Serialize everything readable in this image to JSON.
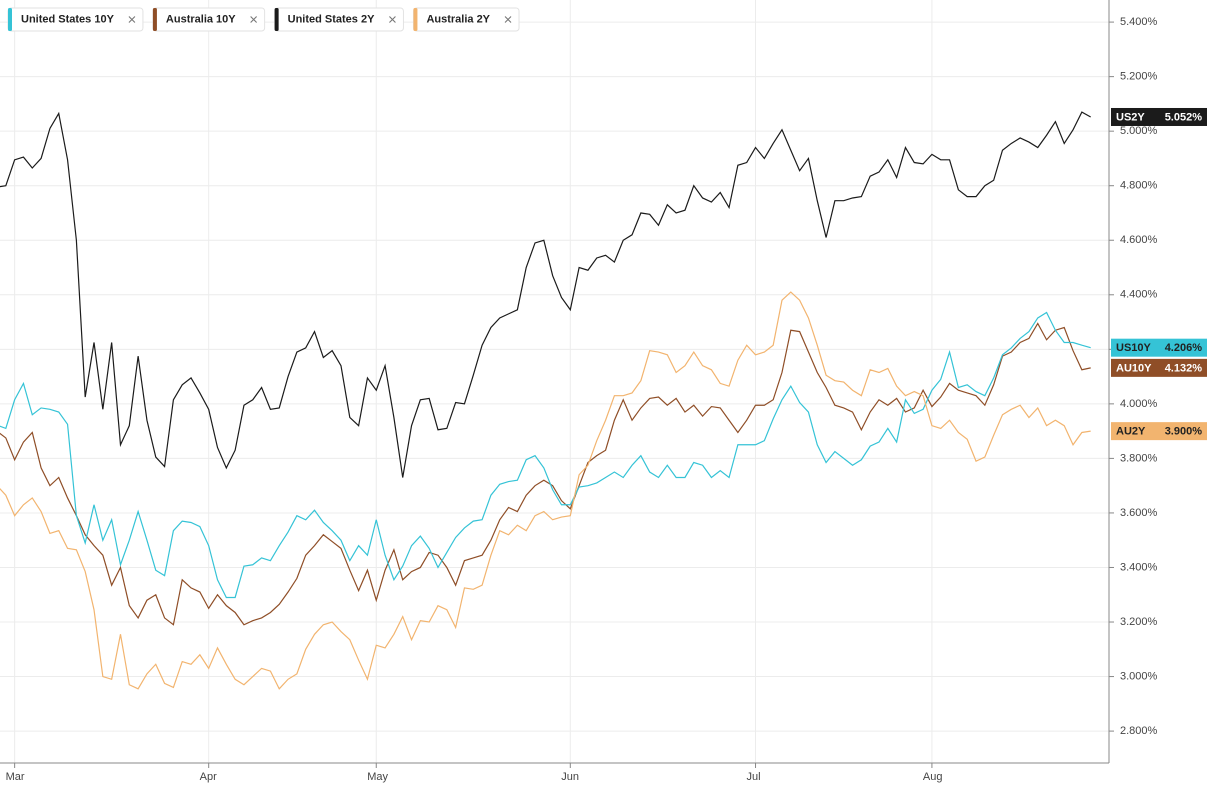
{
  "chart_data": {
    "type": "line",
    "categories": [
      null,
      null,
      "Mar",
      null,
      null,
      null,
      null,
      null,
      null,
      null,
      null,
      null,
      null,
      null,
      null,
      null,
      null,
      null,
      null,
      null,
      null,
      null,
      null,
      null,
      "Apr",
      null,
      null,
      null,
      null,
      null,
      null,
      null,
      null,
      null,
      null,
      null,
      null,
      null,
      null,
      null,
      null,
      null,
      null,
      "May",
      null,
      null,
      null,
      null,
      null,
      null,
      null,
      null,
      null,
      null,
      null,
      null,
      null,
      null,
      null,
      null,
      null,
      null,
      null,
      null,
      null,
      "Jun",
      null,
      null,
      null,
      null,
      null,
      null,
      null,
      null,
      null,
      null,
      null,
      null,
      null,
      null,
      null,
      null,
      null,
      null,
      null,
      null,
      "Jul",
      null,
      null,
      null,
      null,
      null,
      null,
      null,
      null,
      null,
      null,
      null,
      null,
      null,
      null,
      null,
      null,
      null,
      null,
      null,
      "Aug",
      null,
      null,
      null,
      null,
      null,
      null,
      null,
      null,
      null,
      null,
      null,
      null,
      null,
      null,
      null,
      null,
      null,
      null
    ],
    "series": [
      {
        "name": "United States 10Y",
        "symbol": "US10Y",
        "color": "#35c3d6",
        "values": [
          3.922,
          3.91,
          4.015,
          4.075,
          3.96,
          3.985,
          3.98,
          3.97,
          3.925,
          3.59,
          3.49,
          3.63,
          3.5,
          3.575,
          3.41,
          3.5,
          3.605,
          3.5,
          3.39,
          3.37,
          3.535,
          3.57,
          3.565,
          3.55,
          3.48,
          3.355,
          3.29,
          3.29,
          3.405,
          3.41,
          3.435,
          3.425,
          3.48,
          3.53,
          3.59,
          3.575,
          3.61,
          3.565,
          3.535,
          3.5,
          3.425,
          3.48,
          3.445,
          3.575,
          3.445,
          3.355,
          3.405,
          3.48,
          3.515,
          3.47,
          3.4,
          3.455,
          3.51,
          3.545,
          3.57,
          3.575,
          3.665,
          3.705,
          3.715,
          3.72,
          3.795,
          3.81,
          3.765,
          3.685,
          3.63,
          3.63,
          3.695,
          3.7,
          3.71,
          3.73,
          3.75,
          3.73,
          3.775,
          3.81,
          3.75,
          3.73,
          3.775,
          3.73,
          3.73,
          3.785,
          3.775,
          3.73,
          3.755,
          3.73,
          3.85,
          3.85,
          3.85,
          3.865,
          3.945,
          4.015,
          4.065,
          4.005,
          3.97,
          3.85,
          3.785,
          3.825,
          3.8,
          3.775,
          3.795,
          3.845,
          3.86,
          3.91,
          3.86,
          4.015,
          3.965,
          3.98,
          4.05,
          4.09,
          4.19,
          4.06,
          4.07,
          4.045,
          4.03,
          4.095,
          4.18,
          4.205,
          4.24,
          4.265,
          4.315,
          4.335,
          4.27,
          4.225,
          4.225,
          4.215,
          4.206
        ],
        "value_labels": {
          "124": "4.206%"
        }
      },
      {
        "name": "Australia 10Y",
        "symbol": "AU10Y",
        "color": "#8f4e27",
        "values": [
          3.9,
          3.875,
          3.795,
          3.86,
          3.895,
          3.765,
          3.7,
          3.73,
          3.655,
          3.59,
          3.52,
          3.48,
          3.445,
          3.335,
          3.4,
          3.26,
          3.215,
          3.28,
          3.3,
          3.215,
          3.19,
          3.355,
          3.325,
          3.31,
          3.25,
          3.3,
          3.26,
          3.235,
          3.19,
          3.205,
          3.215,
          3.235,
          3.265,
          3.31,
          3.36,
          3.445,
          3.48,
          3.52,
          3.495,
          3.47,
          3.39,
          3.315,
          3.39,
          3.28,
          3.39,
          3.465,
          3.355,
          3.385,
          3.4,
          3.455,
          3.445,
          3.4,
          3.335,
          3.425,
          3.435,
          3.445,
          3.5,
          3.575,
          3.62,
          3.605,
          3.665,
          3.7,
          3.72,
          3.7,
          3.645,
          3.615,
          3.7,
          3.785,
          3.81,
          3.83,
          3.94,
          4.015,
          3.94,
          3.985,
          4.02,
          4.025,
          3.995,
          4.02,
          3.97,
          3.995,
          3.955,
          3.99,
          3.985,
          3.94,
          3.895,
          3.94,
          3.995,
          3.995,
          4.015,
          4.115,
          4.27,
          4.265,
          4.19,
          4.115,
          4.06,
          3.995,
          3.985,
          3.97,
          3.905,
          3.97,
          4.015,
          3.995,
          4.02,
          3.97,
          3.985,
          4.05,
          3.99,
          4.025,
          4.075,
          4.05,
          4.04,
          4.03,
          3.995,
          4.07,
          4.175,
          4.19,
          4.225,
          4.24,
          4.295,
          4.235,
          4.27,
          4.28,
          4.195,
          4.125,
          4.132
        ],
        "value_labels": {
          "124": "4.132%"
        }
      },
      {
        "name": "United States 2Y",
        "symbol": "US2Y",
        "color": "#1b1b1b",
        "values": [
          4.795,
          4.8,
          4.895,
          4.905,
          4.865,
          4.9,
          5.01,
          5.065,
          4.895,
          4.6,
          4.025,
          4.225,
          3.98,
          4.225,
          3.85,
          3.92,
          4.175,
          3.94,
          3.805,
          3.77,
          4.015,
          4.07,
          4.095,
          4.04,
          3.98,
          3.84,
          3.765,
          3.83,
          3.995,
          4.015,
          4.06,
          3.98,
          3.985,
          4.1,
          4.19,
          4.205,
          4.265,
          4.17,
          4.195,
          4.14,
          3.95,
          3.92,
          4.095,
          4.05,
          4.14,
          3.95,
          3.73,
          3.92,
          4.015,
          4.02,
          3.905,
          3.91,
          4.005,
          4.0,
          4.105,
          4.215,
          4.28,
          4.315,
          4.33,
          4.345,
          4.5,
          4.59,
          4.6,
          4.47,
          4.39,
          4.345,
          4.5,
          4.49,
          4.535,
          4.545,
          4.52,
          4.6,
          4.62,
          4.7,
          4.695,
          4.655,
          4.73,
          4.7,
          4.71,
          4.8,
          4.755,
          4.74,
          4.775,
          4.72,
          4.875,
          4.885,
          4.94,
          4.9,
          4.955,
          5.005,
          4.93,
          4.855,
          4.9,
          4.745,
          4.61,
          4.745,
          4.745,
          4.755,
          4.76,
          4.835,
          4.85,
          4.895,
          4.83,
          4.94,
          4.885,
          4.88,
          4.915,
          4.895,
          4.895,
          4.785,
          4.76,
          4.76,
          4.8,
          4.82,
          4.93,
          4.955,
          4.975,
          4.96,
          4.94,
          4.985,
          5.035,
          4.955,
          5.005,
          5.07,
          5.052
        ],
        "value_labels": {
          "124": "5.052%"
        }
      },
      {
        "name": "Australia 2Y",
        "symbol": "AU2Y",
        "color": "#f2b46f",
        "values": [
          3.7,
          3.665,
          3.59,
          3.63,
          3.655,
          3.605,
          3.525,
          3.535,
          3.47,
          3.465,
          3.385,
          3.245,
          3.0,
          2.99,
          3.155,
          2.97,
          2.955,
          3.01,
          3.045,
          2.975,
          2.96,
          3.055,
          3.045,
          3.08,
          3.03,
          3.105,
          3.045,
          2.99,
          2.97,
          3.0,
          3.03,
          3.02,
          2.955,
          2.99,
          3.01,
          3.1,
          3.155,
          3.19,
          3.2,
          3.165,
          3.135,
          3.06,
          2.99,
          3.115,
          3.105,
          3.155,
          3.22,
          3.135,
          3.205,
          3.2,
          3.26,
          3.245,
          3.18,
          3.325,
          3.32,
          3.335,
          3.445,
          3.535,
          3.52,
          3.555,
          3.535,
          3.59,
          3.605,
          3.575,
          3.585,
          3.59,
          3.74,
          3.775,
          3.865,
          3.94,
          4.03,
          4.03,
          4.04,
          4.085,
          4.195,
          4.19,
          4.18,
          4.115,
          4.14,
          4.19,
          4.14,
          4.125,
          4.075,
          4.065,
          4.16,
          4.215,
          4.18,
          4.19,
          4.215,
          4.38,
          4.41,
          4.38,
          4.315,
          4.215,
          4.105,
          4.085,
          4.08,
          4.05,
          4.03,
          4.125,
          4.115,
          4.13,
          4.065,
          4.03,
          4.045,
          4.03,
          3.92,
          3.91,
          3.94,
          3.895,
          3.87,
          3.79,
          3.805,
          3.885,
          3.96,
          3.98,
          3.995,
          3.95,
          3.985,
          3.92,
          3.94,
          3.92,
          3.85,
          3.895,
          3.9
        ],
        "value_labels": {
          "124": "3.900%"
        }
      }
    ],
    "ylim": [
      2.683,
      5.481
    ],
    "yticks": [
      {
        "value": 5.4,
        "label": "5.400%"
      },
      {
        "value": 5.2,
        "label": "5.200%"
      },
      {
        "value": 5.0,
        "label": "5.000%"
      },
      {
        "value": 4.8,
        "label": "4.800%"
      },
      {
        "value": 4.6,
        "label": "4.600%"
      },
      {
        "value": 4.4,
        "label": "4.400%"
      },
      {
        "value": 4.2,
        "label": "4.200%"
      },
      {
        "value": 4.0,
        "label": "4.000%"
      },
      {
        "value": 3.8,
        "label": "3.800%"
      },
      {
        "value": 3.6,
        "label": "3.600%"
      },
      {
        "value": 3.4,
        "label": "3.400%"
      },
      {
        "value": 3.2,
        "label": "3.200%"
      },
      {
        "value": 3.0,
        "label": "3.000%"
      },
      {
        "value": 2.8,
        "label": "2.800%"
      }
    ],
    "grid": true,
    "legend": "top-left"
  }
}
